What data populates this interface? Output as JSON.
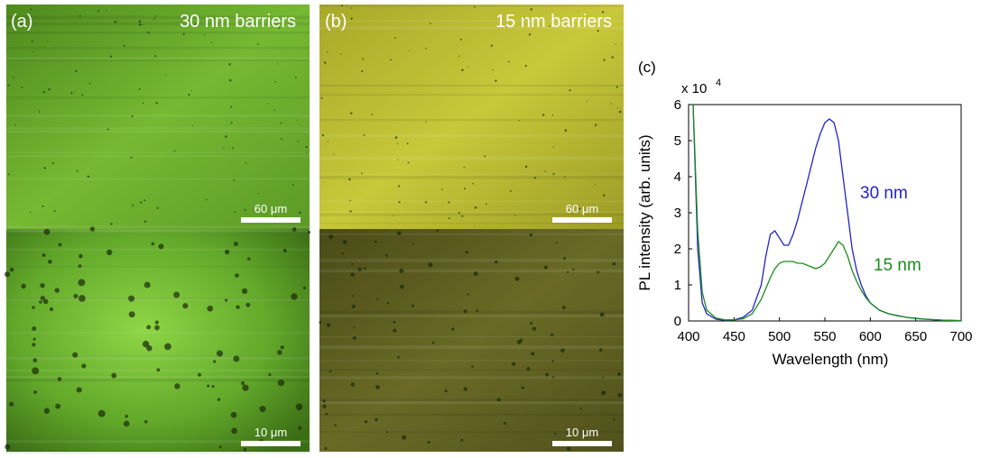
{
  "panels": [
    {
      "label": "(a)",
      "title": "30 nm barriers",
      "scale_bars": [
        "60 μm",
        "10 μm"
      ]
    },
    {
      "label": "(b)",
      "title": "15 nm barriers",
      "scale_bars": [
        "60 μm",
        "10 μm"
      ]
    }
  ],
  "chart_data": {
    "type": "line",
    "label": "(c)",
    "y_multiplier": "x 10",
    "y_multiplier_exponent": "4",
    "xlabel": "Wavelength (nm)",
    "ylabel": "PL intensity (arb. units)",
    "x": [
      405,
      410,
      415,
      420,
      430,
      440,
      450,
      460,
      470,
      480,
      485,
      490,
      495,
      500,
      505,
      510,
      515,
      520,
      525,
      530,
      535,
      540,
      545,
      550,
      555,
      560,
      565,
      570,
      575,
      580,
      585,
      590,
      595,
      600,
      610,
      620,
      630,
      640,
      650,
      660,
      680,
      700
    ],
    "series": [
      {
        "name": "30 nm",
        "color": "#2323c8",
        "values": [
          6,
          2,
          0.5,
          0.2,
          0.05,
          0.02,
          0.03,
          0.1,
          0.3,
          1.0,
          1.8,
          2.4,
          2.5,
          2.3,
          2.1,
          2.1,
          2.4,
          2.8,
          3.3,
          3.8,
          4.3,
          4.8,
          5.2,
          5.5,
          5.6,
          5.5,
          5.0,
          4.0,
          3.0,
          2.0,
          1.4,
          1.0,
          0.7,
          0.5,
          0.3,
          0.2,
          0.15,
          0.1,
          0.07,
          0.05,
          0.02,
          0.01
        ]
      },
      {
        "name": "15 nm",
        "color": "#1e8c1e",
        "values": [
          6,
          2.5,
          0.8,
          0.3,
          0.08,
          0.03,
          0.03,
          0.06,
          0.2,
          0.6,
          0.9,
          1.2,
          1.45,
          1.6,
          1.65,
          1.65,
          1.65,
          1.6,
          1.6,
          1.55,
          1.5,
          1.45,
          1.5,
          1.6,
          1.8,
          2.0,
          2.2,
          2.1,
          1.8,
          1.4,
          1.1,
          0.85,
          0.65,
          0.5,
          0.3,
          0.2,
          0.14,
          0.1,
          0.07,
          0.05,
          0.02,
          0.01
        ]
      }
    ],
    "xlim": [
      400,
      700
    ],
    "ylim": [
      0,
      6
    ],
    "xticks": [
      400,
      450,
      500,
      550,
      600,
      650,
      700
    ],
    "yticks": [
      0,
      1,
      2,
      3,
      4,
      5,
      6
    ]
  }
}
